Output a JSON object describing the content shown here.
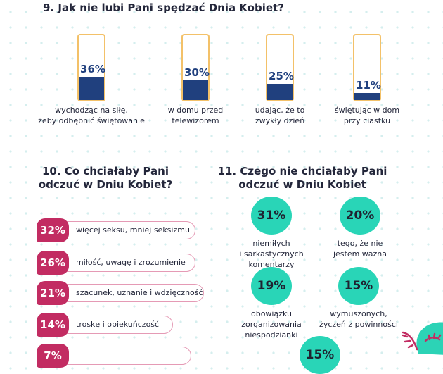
{
  "q9": {
    "title": "9. Jak nie lubi Pani spędzać Dnia Kobiet?"
  },
  "q10": {
    "title_line1": "10. Co chciałaby Pani",
    "title_line2": "odczuć w Dniu Kobiet?"
  },
  "q11": {
    "title_line1": "11. Czego nie chciałaby Pani",
    "title_line2": "odczuć w Dniu Kobiet"
  },
  "colors": {
    "bar_fill": "#20407e",
    "bar_outline": "#f3c169",
    "badge": "#c22c62",
    "pill_outline": "#e59ab5",
    "circle": "#29d5b7"
  },
  "chart_data": [
    {
      "type": "bar",
      "title": "9. Jak nie lubi Pani spędzać Dnia Kobiet?",
      "unit": "%",
      "ylim": [
        0,
        100
      ],
      "categories": [
        "wychodząc na siłę, żeby odbębnić świętowanie",
        "w domu przed telewizorem",
        "udając, że to zwykły dzień",
        "świętując w dom przy ciastku"
      ],
      "label_lines": [
        [
          "wychodząc na siłę,",
          "żeby odbębnić świętowanie"
        ],
        [
          "w domu przed",
          "telewizorem"
        ],
        [
          "udając, że to",
          "zwykły dzień"
        ],
        [
          "świętując w dom",
          "przy ciastku"
        ]
      ],
      "values": [
        36,
        30,
        25,
        11
      ],
      "value_labels": [
        "36%",
        "30%",
        "25%",
        "11%"
      ]
    },
    {
      "type": "bar",
      "orientation": "horizontal",
      "title": "10. Co chciałaby Pani odczuć w Dniu Kobiet?",
      "unit": "%",
      "categories": [
        "więcej seksu, mniej seksizmu",
        "miłość, uwagę i zrozumienie",
        "szacunek, uznanie i wdzięczność",
        "troskę i opiekuńczość",
        ""
      ],
      "values": [
        32,
        26,
        21,
        14,
        7
      ],
      "value_labels": [
        "32%",
        "26%",
        "21%",
        "14%",
        "7%"
      ]
    },
    {
      "type": "bar",
      "title": "11. Czego nie chciałaby Pani odczuć w Dniu Kobiet",
      "unit": "%",
      "categories": [
        "niemiłych i sarkastycznych komentarzy",
        "tego, że nie jestem ważna",
        "obowiązku zorganizowania niespodzianki",
        "wymuszonych, życzeń z powinności",
        ""
      ],
      "label_lines": [
        [
          "niemiłych",
          "i sarkastycznych",
          "komentarzy"
        ],
        [
          "tego, że nie",
          "jestem ważna"
        ],
        [
          "obowiązku",
          "zorganizowania",
          "niespodzianki"
        ],
        [
          "wymuszonych,",
          "życzeń z powinności"
        ],
        []
      ],
      "values": [
        31,
        20,
        19,
        15,
        15
      ],
      "value_labels": [
        "31%",
        "20%",
        "19%",
        "15%",
        "15%"
      ]
    }
  ]
}
